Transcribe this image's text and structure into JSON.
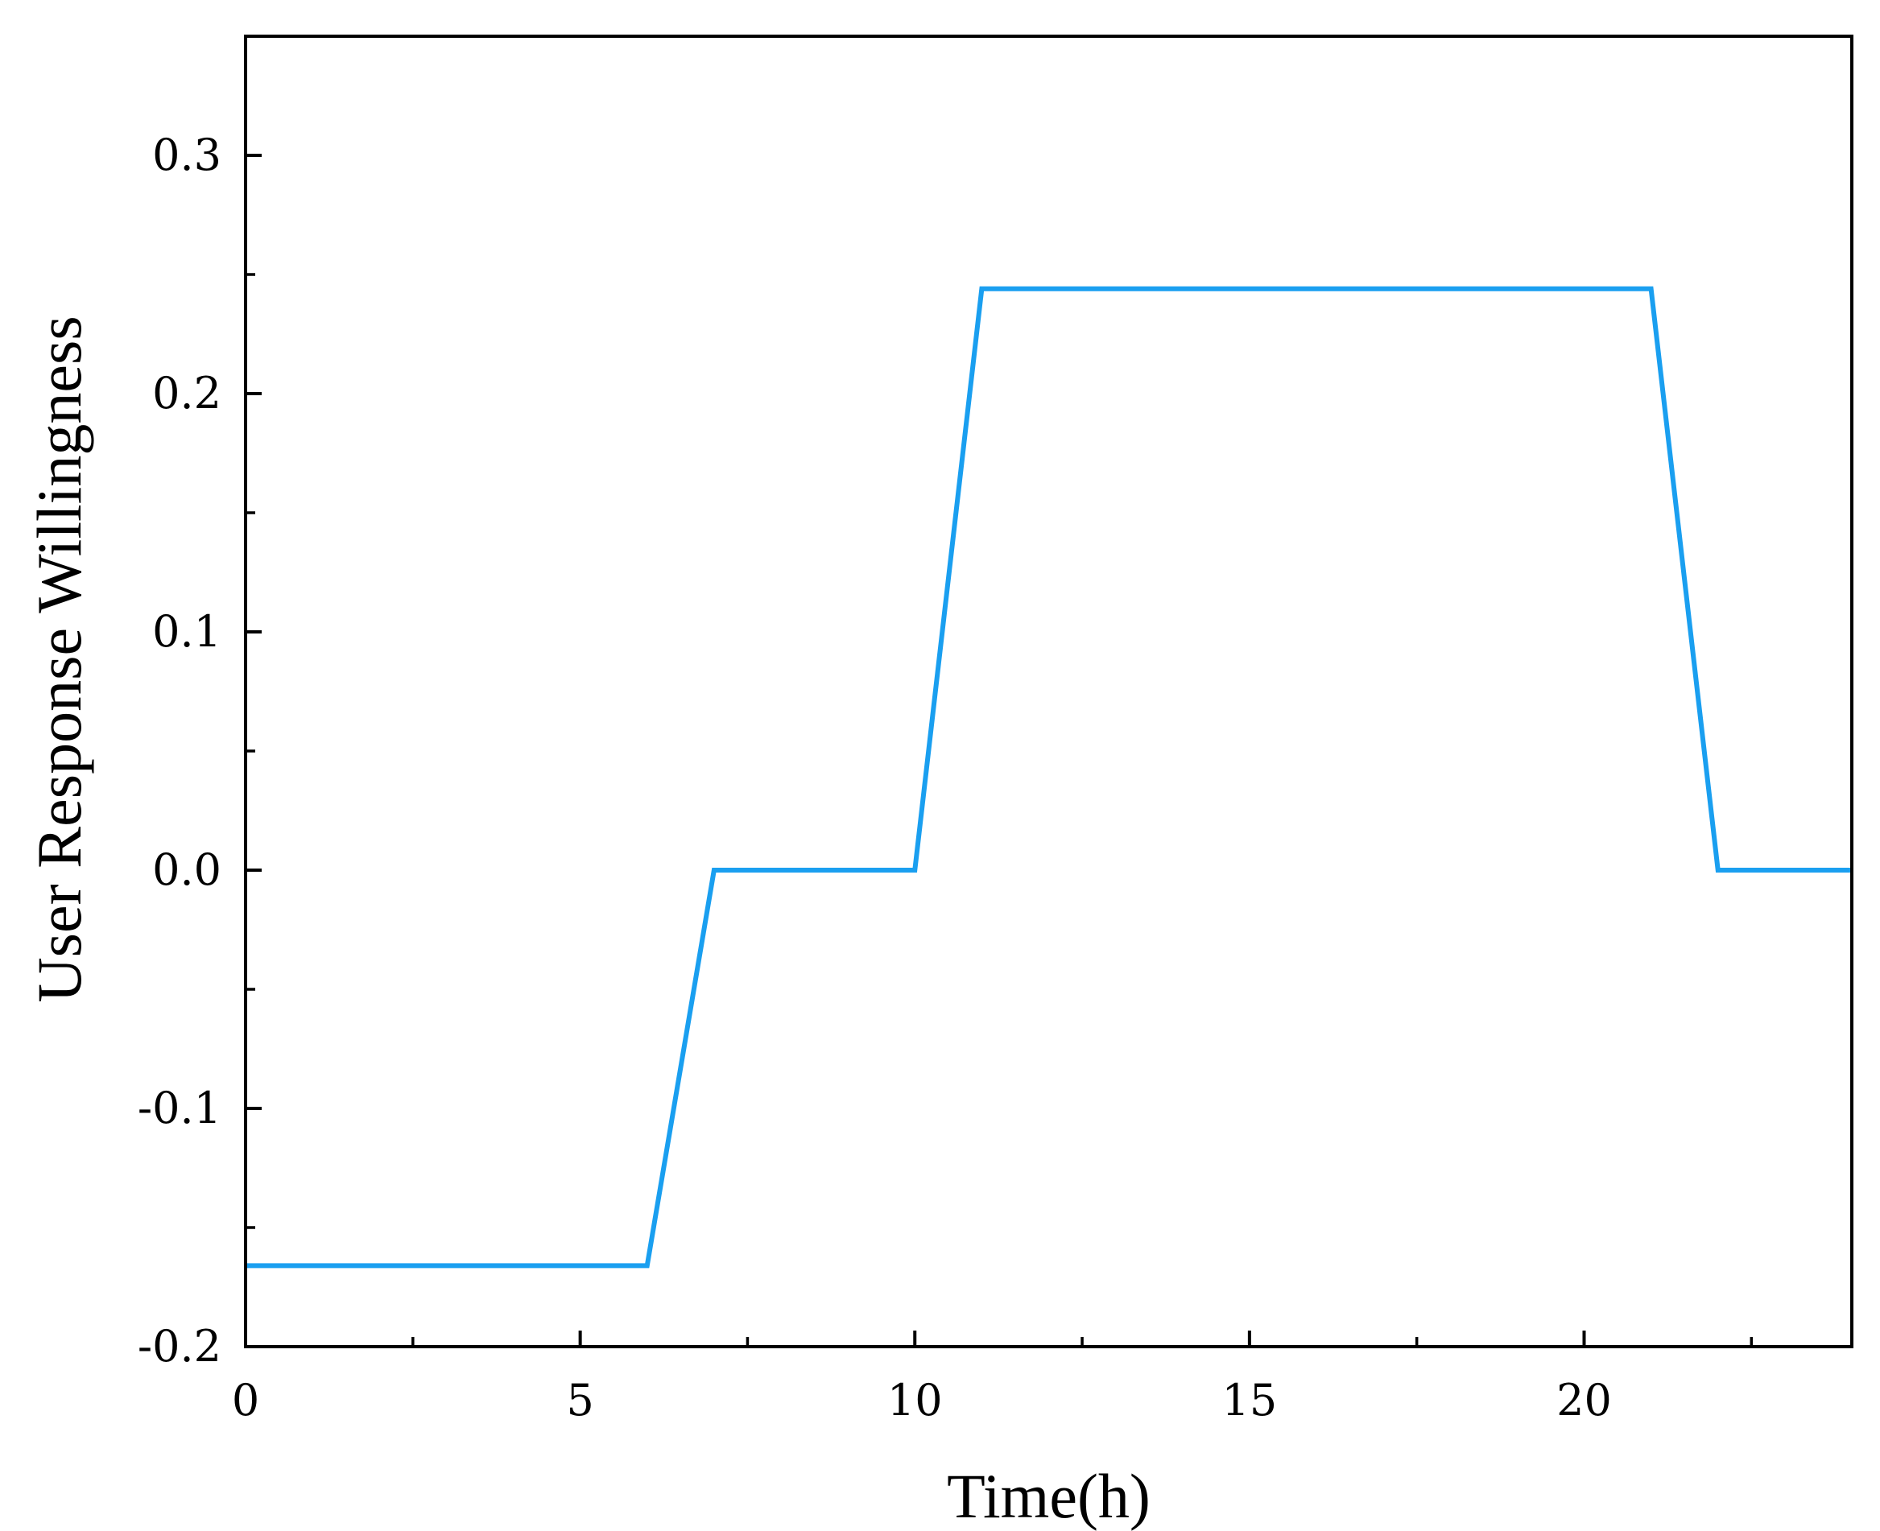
{
  "chart_data": {
    "type": "line",
    "title": "",
    "xlabel": "Time(h)",
    "ylabel": "User Response Willingness",
    "xlim": [
      0,
      24
    ],
    "ylim": [
      -0.2,
      0.35
    ],
    "xticks": [
      0,
      5,
      10,
      15,
      20
    ],
    "xtick_labels": [
      "0",
      "5",
      "10",
      "15",
      "20"
    ],
    "x_minor_ticks": [
      2.5,
      7.5,
      12.5,
      17.5,
      22.5
    ],
    "yticks": [
      -0.2,
      -0.1,
      0.0,
      0.1,
      0.2,
      0.3
    ],
    "ytick_labels": [
      "-0.2",
      "-0.1",
      "0.0",
      "0.1",
      "0.2",
      "0.3"
    ],
    "y_minor_ticks": [
      -0.15,
      -0.05,
      0.05,
      0.15,
      0.25
    ],
    "grid": false,
    "legend": "none",
    "series": [
      {
        "color": "#1a9ff0",
        "x": [
          0,
          1,
          2,
          3,
          4,
          5,
          6,
          7,
          8,
          9,
          10,
          11,
          12,
          13,
          14,
          15,
          16,
          17,
          18,
          19,
          20,
          21,
          22,
          23,
          24
        ],
        "y": [
          -0.166,
          -0.166,
          -0.166,
          -0.166,
          -0.166,
          -0.166,
          -0.166,
          0.0,
          0.0,
          0.0,
          0.0,
          0.244,
          0.244,
          0.244,
          0.244,
          0.244,
          0.244,
          0.244,
          0.244,
          0.244,
          0.244,
          0.244,
          0.0,
          0.0,
          0.0
        ]
      }
    ]
  }
}
